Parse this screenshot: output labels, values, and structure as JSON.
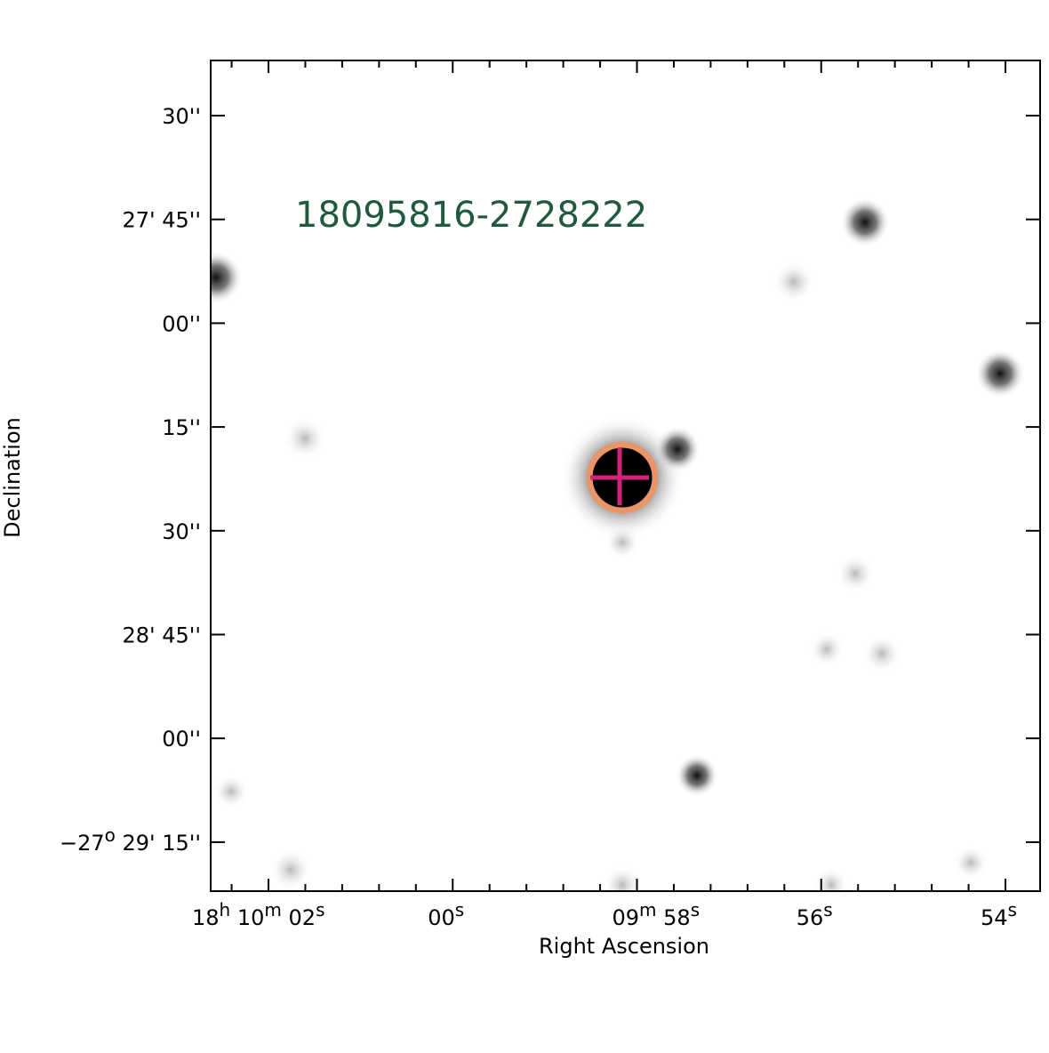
{
  "title": "18095816-2728222",
  "x_axis": {
    "label": "Right Ascension",
    "ticks": [
      [
        "18",
        "h",
        " 10",
        "m",
        " 02",
        "s"
      ],
      [
        "00",
        "s"
      ],
      [
        "09",
        "m",
        " 58",
        "s"
      ],
      [
        "56",
        "s"
      ],
      [
        "54",
        "s"
      ]
    ]
  },
  "y_axis": {
    "label": "Declination",
    "ticks": [
      [
        "30''"
      ],
      [
        "27' 45''"
      ],
      [
        "00''"
      ],
      [
        "15''"
      ],
      [
        "30''"
      ],
      [
        "28' 45''"
      ],
      [
        "00''"
      ],
      [
        "−27",
        "o",
        " 29' 15''"
      ]
    ]
  }
}
